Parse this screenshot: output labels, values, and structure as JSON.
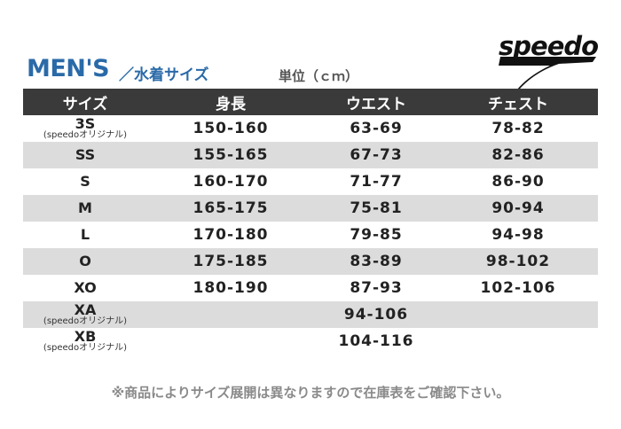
{
  "header": {
    "title": "MEN'S",
    "subtitle": "／水着サイズ",
    "unit": "単位（ｃｍ）",
    "logo": "speedo"
  },
  "columns": [
    "サイズ",
    "身長",
    "ウエスト",
    "チェスト"
  ],
  "rows": [
    {
      "size": "3S",
      "note": "(speedoオリジナル)",
      "height": "150-160",
      "waist": "63-69",
      "chest": "78-82"
    },
    {
      "size": "SS",
      "note": "",
      "height": "155-165",
      "waist": "67-73",
      "chest": "82-86"
    },
    {
      "size": "S",
      "note": "",
      "height": "160-170",
      "waist": "71-77",
      "chest": "86-90"
    },
    {
      "size": "M",
      "note": "",
      "height": "165-175",
      "waist": "75-81",
      "chest": "90-94"
    },
    {
      "size": "L",
      "note": "",
      "height": "170-180",
      "waist": "79-85",
      "chest": "94-98"
    },
    {
      "size": "O",
      "note": "",
      "height": "175-185",
      "waist": "83-89",
      "chest": "98-102"
    },
    {
      "size": "XO",
      "note": "",
      "height": "180-190",
      "waist": "87-93",
      "chest": "102-106"
    },
    {
      "size": "XA",
      "note": "(speedoオリジナル)",
      "height": "",
      "waist": "94-106",
      "chest": ""
    },
    {
      "size": "XB",
      "note": "(speedoオリジナル)",
      "height": "",
      "waist": "104-116",
      "chest": ""
    }
  ],
  "footer_note": "※商品によりサイズ展開は異なりますので在庫表をご確認下さい。",
  "colors": {
    "title": "#2a6aa8",
    "header_bg": "#3a3a3a",
    "stripe": "#dcdcdc"
  }
}
